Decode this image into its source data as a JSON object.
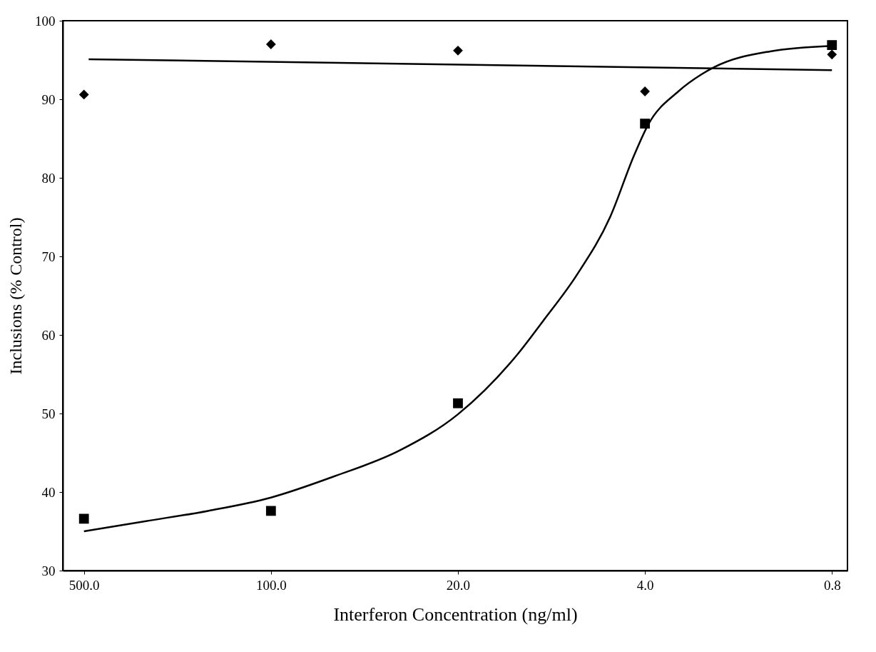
{
  "chart_data": {
    "type": "scatter",
    "xlabel": "Interferon Concentration (ng/ml)",
    "ylabel": "Inclusions (% Control)",
    "log": "x",
    "xlim": [
      600,
      0.7
    ],
    "ylim": [
      30,
      100
    ],
    "xticks": [
      {
        "value": 500,
        "label": "500.0"
      },
      {
        "value": 100,
        "label": "100.0"
      },
      {
        "value": 20,
        "label": "20.0"
      },
      {
        "value": 4,
        "label": "4.0"
      },
      0.8
    ],
    "yticks": [
      30,
      40,
      50,
      60,
      70,
      80,
      90,
      100
    ],
    "grid": false,
    "series": [
      {
        "marker": "diamond",
        "color": "#000000",
        "x": [
          500,
          100,
          20,
          4,
          0.8
        ],
        "values": [
          90.6,
          97.0,
          96.2,
          91.0,
          95.7
        ]
      },
      {
        "marker": "square",
        "color": "#000000",
        "x": [
          500,
          100,
          20,
          4,
          0.8
        ],
        "values": [
          36.6,
          37.6,
          51.3,
          86.9,
          96.9
        ]
      },
      {
        "type": "line",
        "marker": "none",
        "line_style": "solid",
        "color": "#000000",
        "x": [
          480,
          0.8
        ],
        "values": [
          95.1,
          93.7
        ]
      },
      {
        "type": "line",
        "marker": "none",
        "line_style": "solid",
        "color": "#000000",
        "x": [
          500,
          293,
          172,
          100,
          58,
          33,
          20,
          12,
          9.6,
          7.2,
          5.4,
          4.4,
          3.9,
          3.0,
          2.45,
          2.2,
          1.36,
          0.8
        ],
        "values": [
          35.0,
          36.3,
          37.6,
          39.3,
          42.0,
          45.3,
          49.9,
          57.5,
          61.8,
          67.6,
          75.0,
          82.8,
          86.7,
          91.0,
          93.2,
          94.1,
          96.1,
          96.8
        ]
      }
    ]
  }
}
